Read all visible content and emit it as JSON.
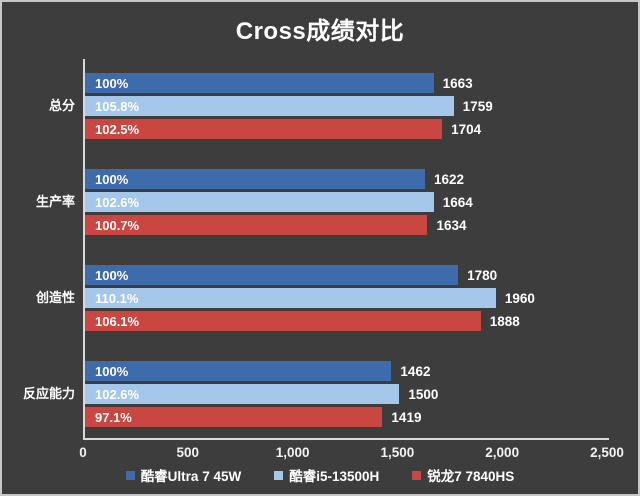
{
  "chart_data": {
    "type": "bar",
    "orientation": "horizontal",
    "title": "Cross成绩对比",
    "categories": [
      "总分",
      "生产率",
      "创造性",
      "反应能力"
    ],
    "series": [
      {
        "name": "酷睿Ultra 7 45W",
        "color": "#3e6bab",
        "values": [
          1663,
          1622,
          1780,
          1462
        ],
        "percent_labels": [
          "100%",
          "100%",
          "100%",
          "100%"
        ]
      },
      {
        "name": "酷睿i5-13500H",
        "color": "#a5c7ea",
        "values": [
          1759,
          1664,
          1960,
          1500
        ],
        "percent_labels": [
          "105.8%",
          "102.6%",
          "110.1%",
          "102.6%"
        ]
      },
      {
        "name": "锐龙7 7840HS",
        "color": "#ca4640",
        "values": [
          1704,
          1634,
          1888,
          1419
        ],
        "percent_labels": [
          "102.5%",
          "100.7%",
          "106.1%",
          "97.1%"
        ]
      }
    ],
    "xlim": [
      0,
      2500
    ],
    "x_ticks": [
      "0",
      "500",
      "1,000",
      "1,500",
      "2,000",
      "2,500"
    ],
    "legend_position": "bottom",
    "grid": false,
    "theme": {
      "background": "#3d3d3d",
      "frame_border": "#c8c8c8",
      "axis_line": "#d9d9d9",
      "text": "#ffffff"
    }
  }
}
